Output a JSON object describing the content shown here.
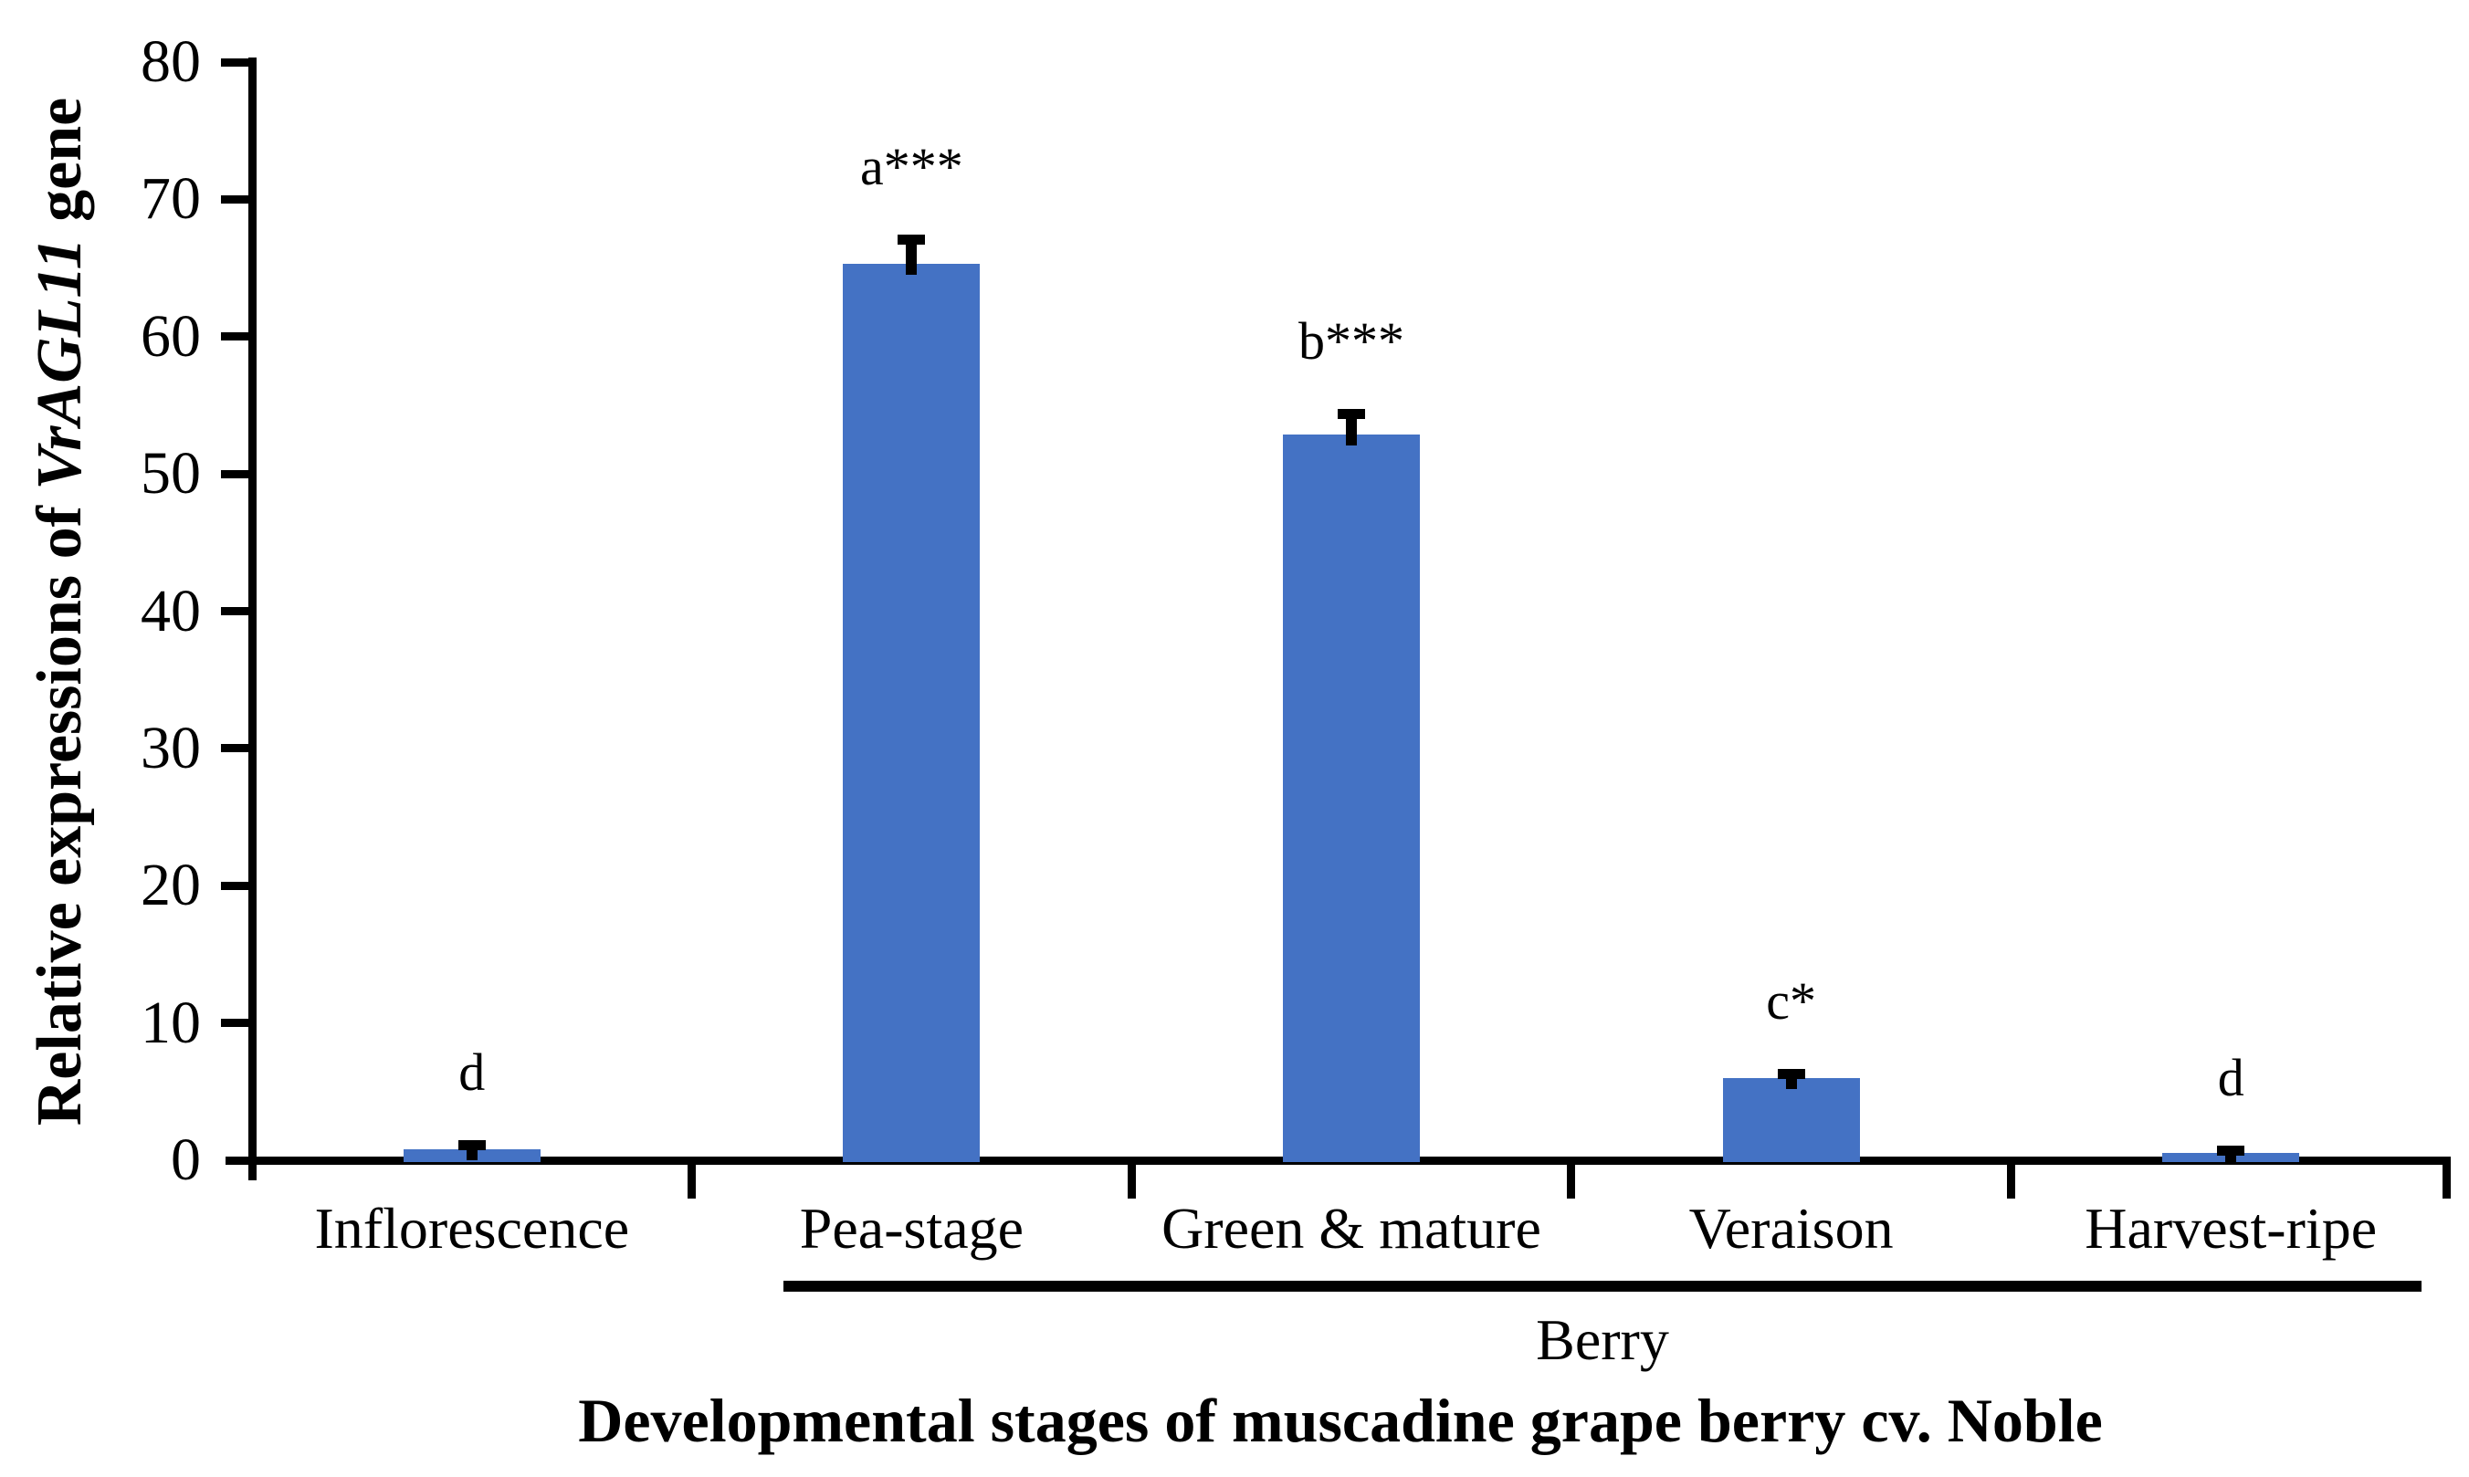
{
  "chart_data": {
    "type": "bar",
    "title": "",
    "xlabel": "Developmental stages of muscadine grape berry cv. Noble",
    "ylabel": "Relative expressions of VrAGL11 gene",
    "ylabel_parts": [
      {
        "text": "Relative expressions of ",
        "italic": false
      },
      {
        "text": "VrAGL11",
        "italic": true
      },
      {
        "text": " gene",
        "italic": false
      }
    ],
    "categories": [
      "Inflorescence",
      "Pea-stage",
      "Green & mature",
      "Veraison",
      "Harvest-ripe"
    ],
    "values": [
      0.8,
      65.3,
      52.9,
      6.0,
      0.5
    ],
    "errors": [
      0.3,
      1.4,
      1.1,
      0.3,
      0.2
    ],
    "significance_labels": [
      "d",
      "a***",
      "b***",
      "c*",
      "d"
    ],
    "group_label": "Berry",
    "group_span_categories": [
      "Pea-stage",
      "Green & mature",
      "Veraison",
      "Harvest-ripe"
    ],
    "ylim": [
      0,
      80
    ],
    "ytick_step": 10,
    "ytick_labels": [
      "0",
      "10",
      "20",
      "30",
      "40",
      "50",
      "60",
      "70",
      "80"
    ],
    "grid": "off",
    "legend": "none",
    "bar_color": "#4472C4",
    "axis_color": "#000000",
    "error_bar_color": "#000000"
  }
}
